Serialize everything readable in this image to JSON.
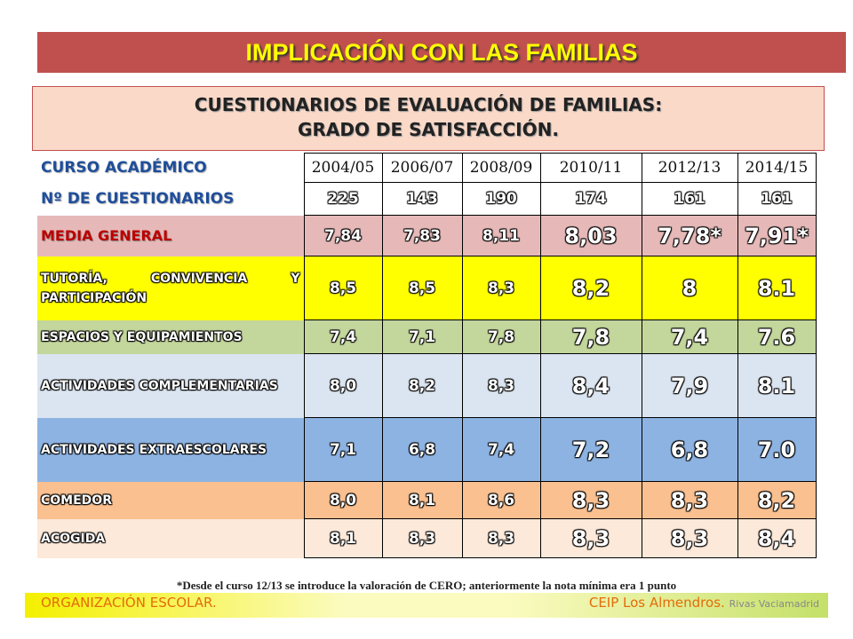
{
  "header": {
    "title": "IMPLICACIÓN CON LAS FAMILIAS",
    "subtitle": [
      "CUESTIONARIOS DE EVALUACIÓN DE FAMILIAS:",
      "GRADO DE SATISFACCIÓN."
    ]
  },
  "table": {
    "rows": [
      {
        "label": "CURSO ACADÉMICO",
        "values": [
          "2004/05",
          "2006/07",
          "2008/09",
          "2010/11",
          "2012/13",
          "2014/15"
        ]
      },
      {
        "label": "Nº DE CUESTIONARIOS",
        "values": [
          "225",
          "143",
          "190",
          "174",
          "161",
          "161"
        ]
      },
      {
        "label": "MEDIA GENERAL",
        "values": [
          "7,84",
          "7,83",
          "8,11",
          "8,03",
          "7,78*",
          "7,91*"
        ]
      },
      {
        "label": "TUTORÍA, CONVIVENCIA Y PARTICIPACIÓN",
        "values": [
          "8,5",
          "8,5",
          "8,3",
          "8,2",
          "8",
          "8.1"
        ]
      },
      {
        "label": "ESPACIOS Y EQUIPAMIENTOS",
        "values": [
          "7,4",
          "7,1",
          "7,8",
          "7,8",
          "7,4",
          "7.6"
        ]
      },
      {
        "label": "ACTIVIDADES COMPLEMENTARIAS",
        "values": [
          "8,0",
          "8,2",
          "8,3",
          "8,4",
          "7,9",
          "8.1"
        ]
      },
      {
        "label": "ACTIVIDADES EXTRAESCOLARES",
        "values": [
          "7,1",
          "6,8",
          "7,4",
          "7,2",
          "6,8",
          "7.0"
        ]
      },
      {
        "label": "COMEDOR",
        "values": [
          "8,0",
          "8,1",
          "8,6",
          "8,3",
          "8,3",
          "8,2"
        ]
      },
      {
        "label": "ACOGIDA",
        "values": [
          "8,1",
          "8,3",
          "8,3",
          "8,3",
          "8,3",
          "8,4"
        ]
      }
    ]
  },
  "footnote": "*Desde el curso 12/13 se introduce la valoración de CERO; anteriormente la nota mínima era 1 punto",
  "footer": {
    "left": "ORGANIZACIÓN ESCOLAR.",
    "right": "CEIP Los Almendros.",
    "right_small": "Rivas Vaciamadrid"
  }
}
